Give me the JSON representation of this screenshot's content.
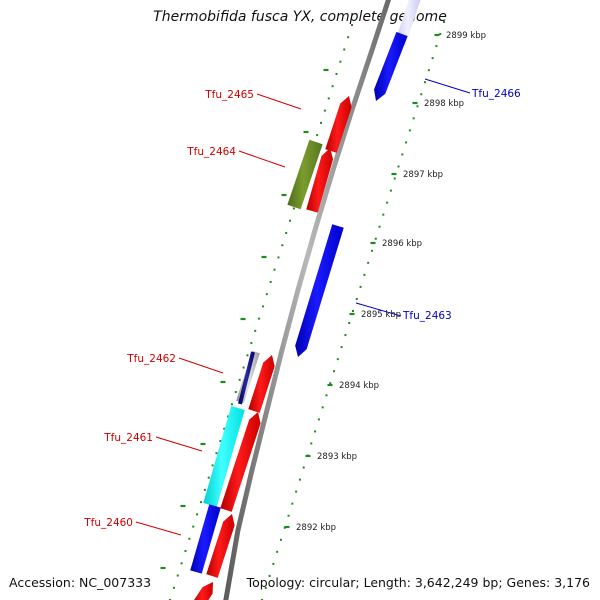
{
  "title": "Thermobifida fusca YX, complete genome",
  "accession": "Accession: NC_007333",
  "summary": "Topology: circular; Length: 3,642,249 bp; Genes: 3,176",
  "colors": {
    "backbone": "#8c8c8c",
    "scale": "#1f8a1f",
    "forward_label": "#d40000",
    "reverse_label": "#0000cc",
    "red_gene": "#ff0000",
    "blue_gene": "#0000ff",
    "olive_gene": "#6b8e23",
    "cyan_gene": "#00ffff"
  },
  "scale_labels": [
    {
      "text": "2899 kbp",
      "kb": 2899
    },
    {
      "text": "2898 kbp",
      "kb": 2898
    },
    {
      "text": "2897 kbp",
      "kb": 2897
    },
    {
      "text": "2896 kbp",
      "kb": 2896
    },
    {
      "text": "2895 kbp",
      "kb": 2895
    },
    {
      "text": "2894 kbp",
      "kb": 2894
    },
    {
      "text": "2893 kbp",
      "kb": 2893
    },
    {
      "text": "2892 kbp",
      "kb": 2892
    }
  ],
  "gene_labels": [
    {
      "name": "Tfu_2466",
      "strand": "reverse"
    },
    {
      "name": "Tfu_2465",
      "strand": "forward"
    },
    {
      "name": "Tfu_2464",
      "strand": "forward"
    },
    {
      "name": "Tfu_2463",
      "strand": "reverse"
    },
    {
      "name": "Tfu_2462",
      "strand": "forward"
    },
    {
      "name": "Tfu_2461",
      "strand": "forward"
    },
    {
      "name": "Tfu_2460",
      "strand": "forward"
    }
  ]
}
